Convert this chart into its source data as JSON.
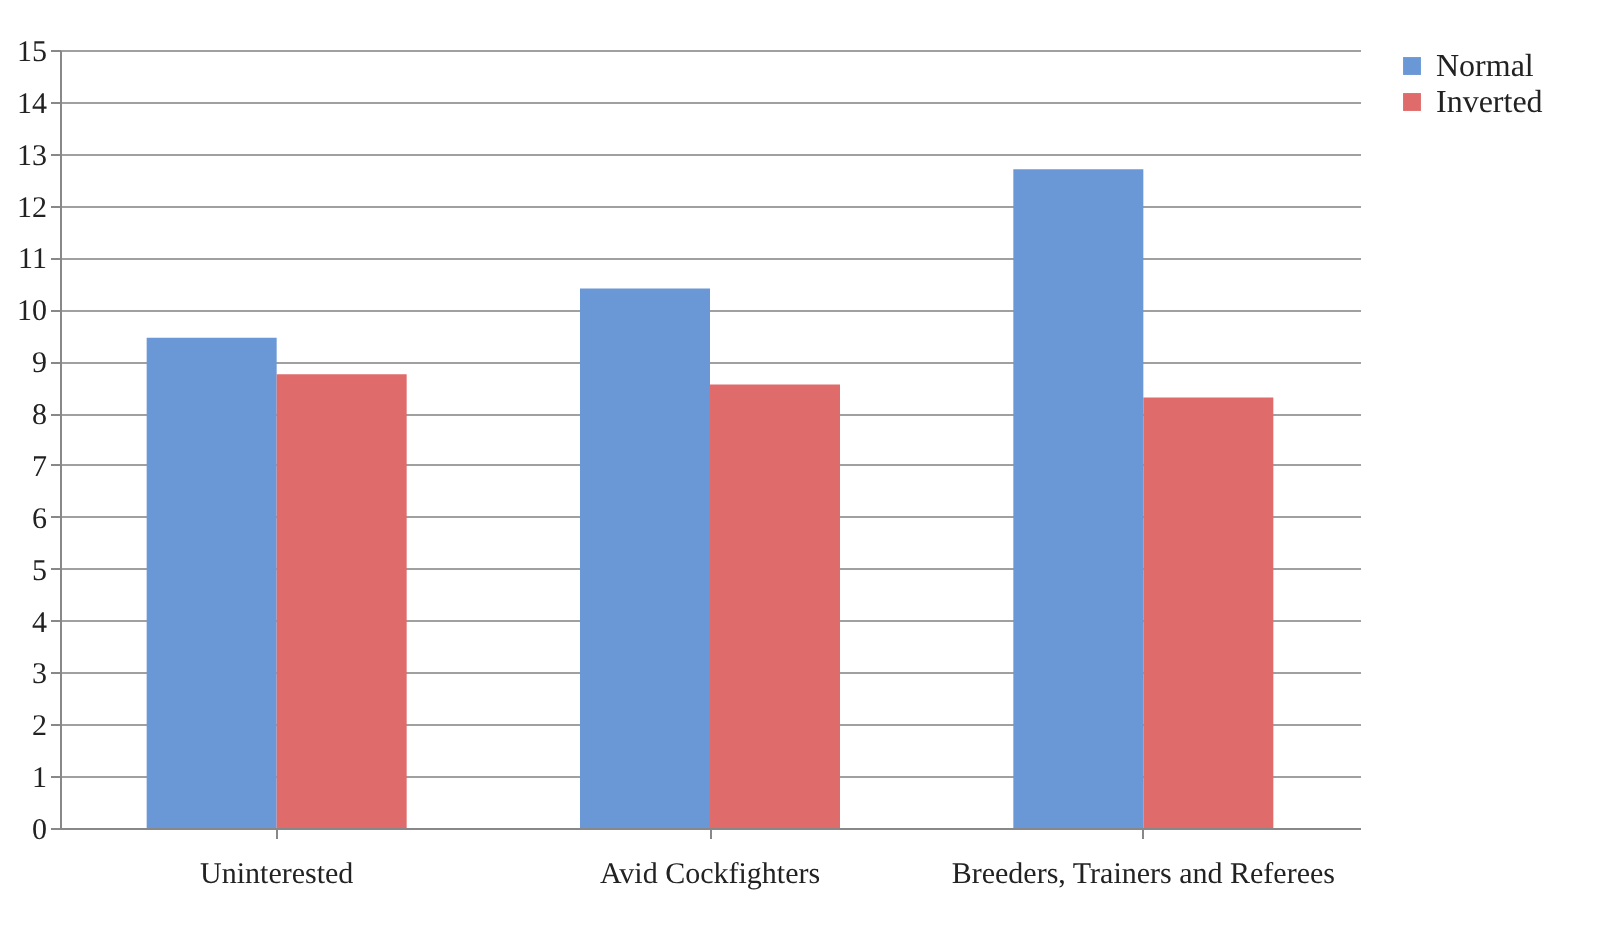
{
  "chart_data": {
    "type": "bar",
    "categories": [
      "Uninterested",
      "Avid Cockfighters",
      "Breeders, Trainers and Referees"
    ],
    "series": [
      {
        "name": "Normal",
        "color": "#6a98d6",
        "values": [
          9.45,
          10.4,
          12.7
        ]
      },
      {
        "name": "Inverted",
        "color": "#e06b6b",
        "values": [
          8.75,
          8.55,
          8.3
        ]
      }
    ],
    "ylim": [
      0,
      15
    ],
    "yticks": [
      0,
      1,
      2,
      3,
      4,
      5,
      6,
      7,
      8,
      9,
      10,
      11,
      12,
      13,
      14,
      15
    ],
    "grid": "y",
    "legend": "right"
  }
}
